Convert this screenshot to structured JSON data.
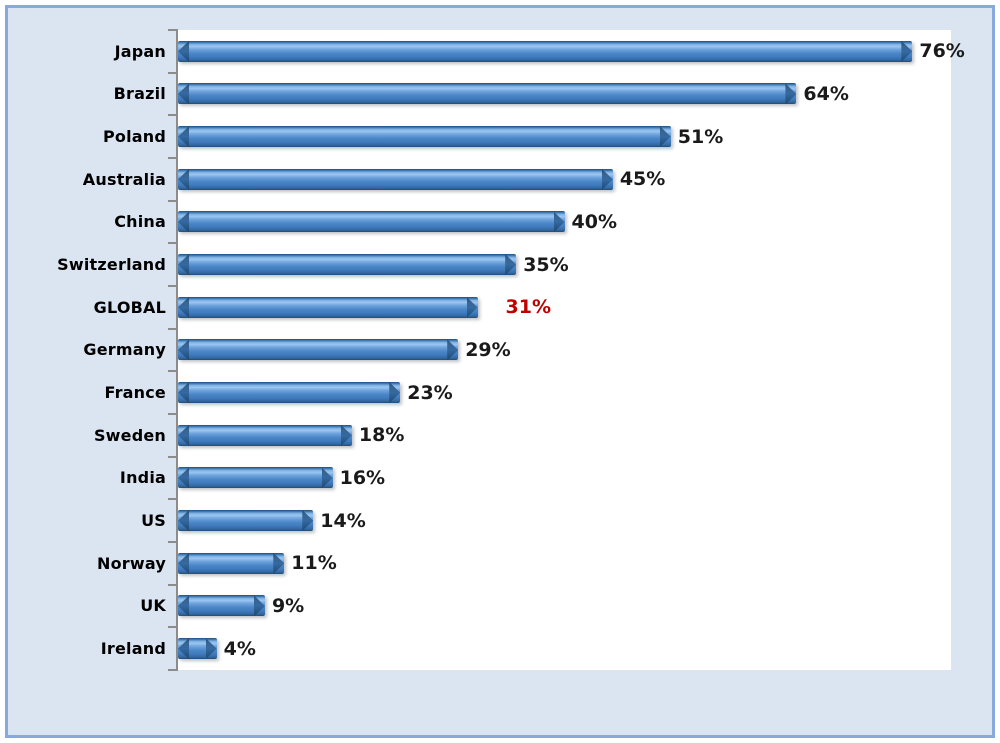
{
  "chart_data": {
    "type": "bar",
    "orientation": "horizontal",
    "title": "",
    "xlabel": "",
    "ylabel": "",
    "categories": [
      "Japan",
      "Brazil",
      "Poland",
      "Australia",
      "China",
      "Switzerland",
      "GLOBAL",
      "Germany",
      "France",
      "Sweden",
      "India",
      "US",
      "Norway",
      "UK",
      "Ireland"
    ],
    "values": [
      76,
      64,
      51,
      45,
      40,
      35,
      31,
      29,
      23,
      18,
      16,
      14,
      11,
      9,
      4
    ],
    "data_labels": [
      "76%",
      "64%",
      "51%",
      "45%",
      "40%",
      "35%",
      "31%",
      "29%",
      "23%",
      "18%",
      "16%",
      "14%",
      "11%",
      "9%",
      "4%"
    ],
    "highlight_index": 6,
    "highlight_label_color": "#C00000",
    "label_color": "#000000",
    "xlim": [
      0,
      80
    ],
    "grid": false,
    "legend": false,
    "bar_color": "#4C88C8",
    "axis_color": "#8C8C8C",
    "plot_background": "#FFFFFF",
    "chart_background": "#DBE5F1",
    "chart_border_color": "#87A9DC"
  }
}
